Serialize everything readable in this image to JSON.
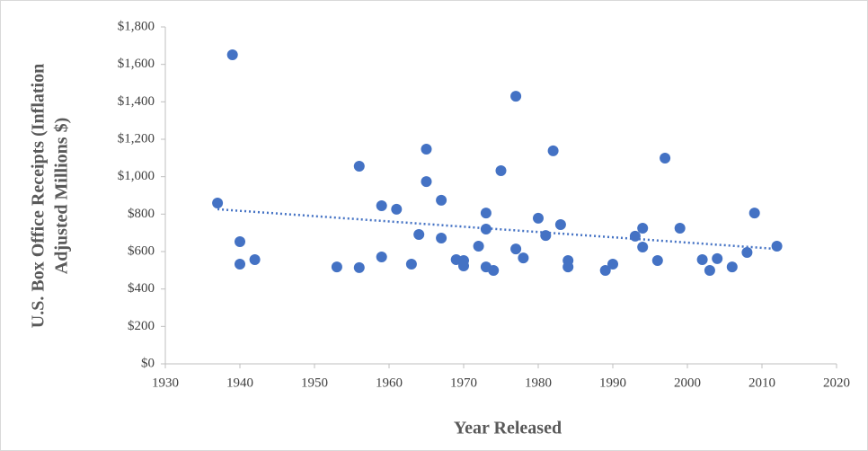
{
  "chart_data": {
    "type": "scatter",
    "x_label": "Year Released",
    "y_label": [
      "U.S. Box Office Receipts (Inflation",
      "Adjusted Millions $)"
    ],
    "color": "#4472c4",
    "x": [
      1937,
      1939,
      1940,
      1940,
      1942,
      1953,
      1956,
      1956,
      1959,
      1959,
      1961,
      1963,
      1964,
      1965,
      1965,
      1967,
      1967,
      1969,
      1970,
      1970,
      1972,
      1973,
      1973,
      1973,
      1974,
      1975,
      1977,
      1977,
      1978,
      1980,
      1981,
      1982,
      1983,
      1984,
      1984,
      1989,
      1990,
      1993,
      1994,
      1994,
      1996,
      1997,
      1999,
      2002,
      2003,
      2004,
      2006,
      2008,
      2009,
      2012
    ],
    "values": [
      859,
      1651,
      653,
      533,
      557,
      518,
      514,
      1056,
      845,
      571,
      826,
      533,
      691,
      1147,
      974,
      874,
      672,
      557,
      552,
      523,
      629,
      806,
      720,
      518,
      499,
      1032,
      1430,
      614,
      566,
      778,
      686,
      1138,
      744,
      552,
      518,
      499,
      533,
      682,
      725,
      624,
      552,
      1099,
      725,
      557,
      499,
      562,
      518,
      595,
      806,
      629
    ],
    "trendline": {
      "x": [
        1937,
        2012
      ],
      "values": [
        826,
        614
      ]
    },
    "xlim": [
      1930,
      2020
    ],
    "xticks": [
      1930,
      1940,
      1950,
      1960,
      1970,
      1980,
      1990,
      2000,
      2010,
      2020
    ],
    "ylim": [
      0,
      1800
    ],
    "yticks": [
      {
        "value": 0,
        "label": "$0"
      },
      {
        "value": 200,
        "label": "$200"
      },
      {
        "value": 400,
        "label": "$400"
      },
      {
        "value": 600,
        "label": "$600"
      },
      {
        "value": 800,
        "label": "$800"
      },
      {
        "value": 1000,
        "label": "$1,000"
      },
      {
        "value": 1200,
        "label": "$1,200"
      },
      {
        "value": 1400,
        "label": "$1,400"
      },
      {
        "value": 1600,
        "label": "$1,600"
      },
      {
        "value": 1800,
        "label": "$1,800"
      }
    ]
  }
}
